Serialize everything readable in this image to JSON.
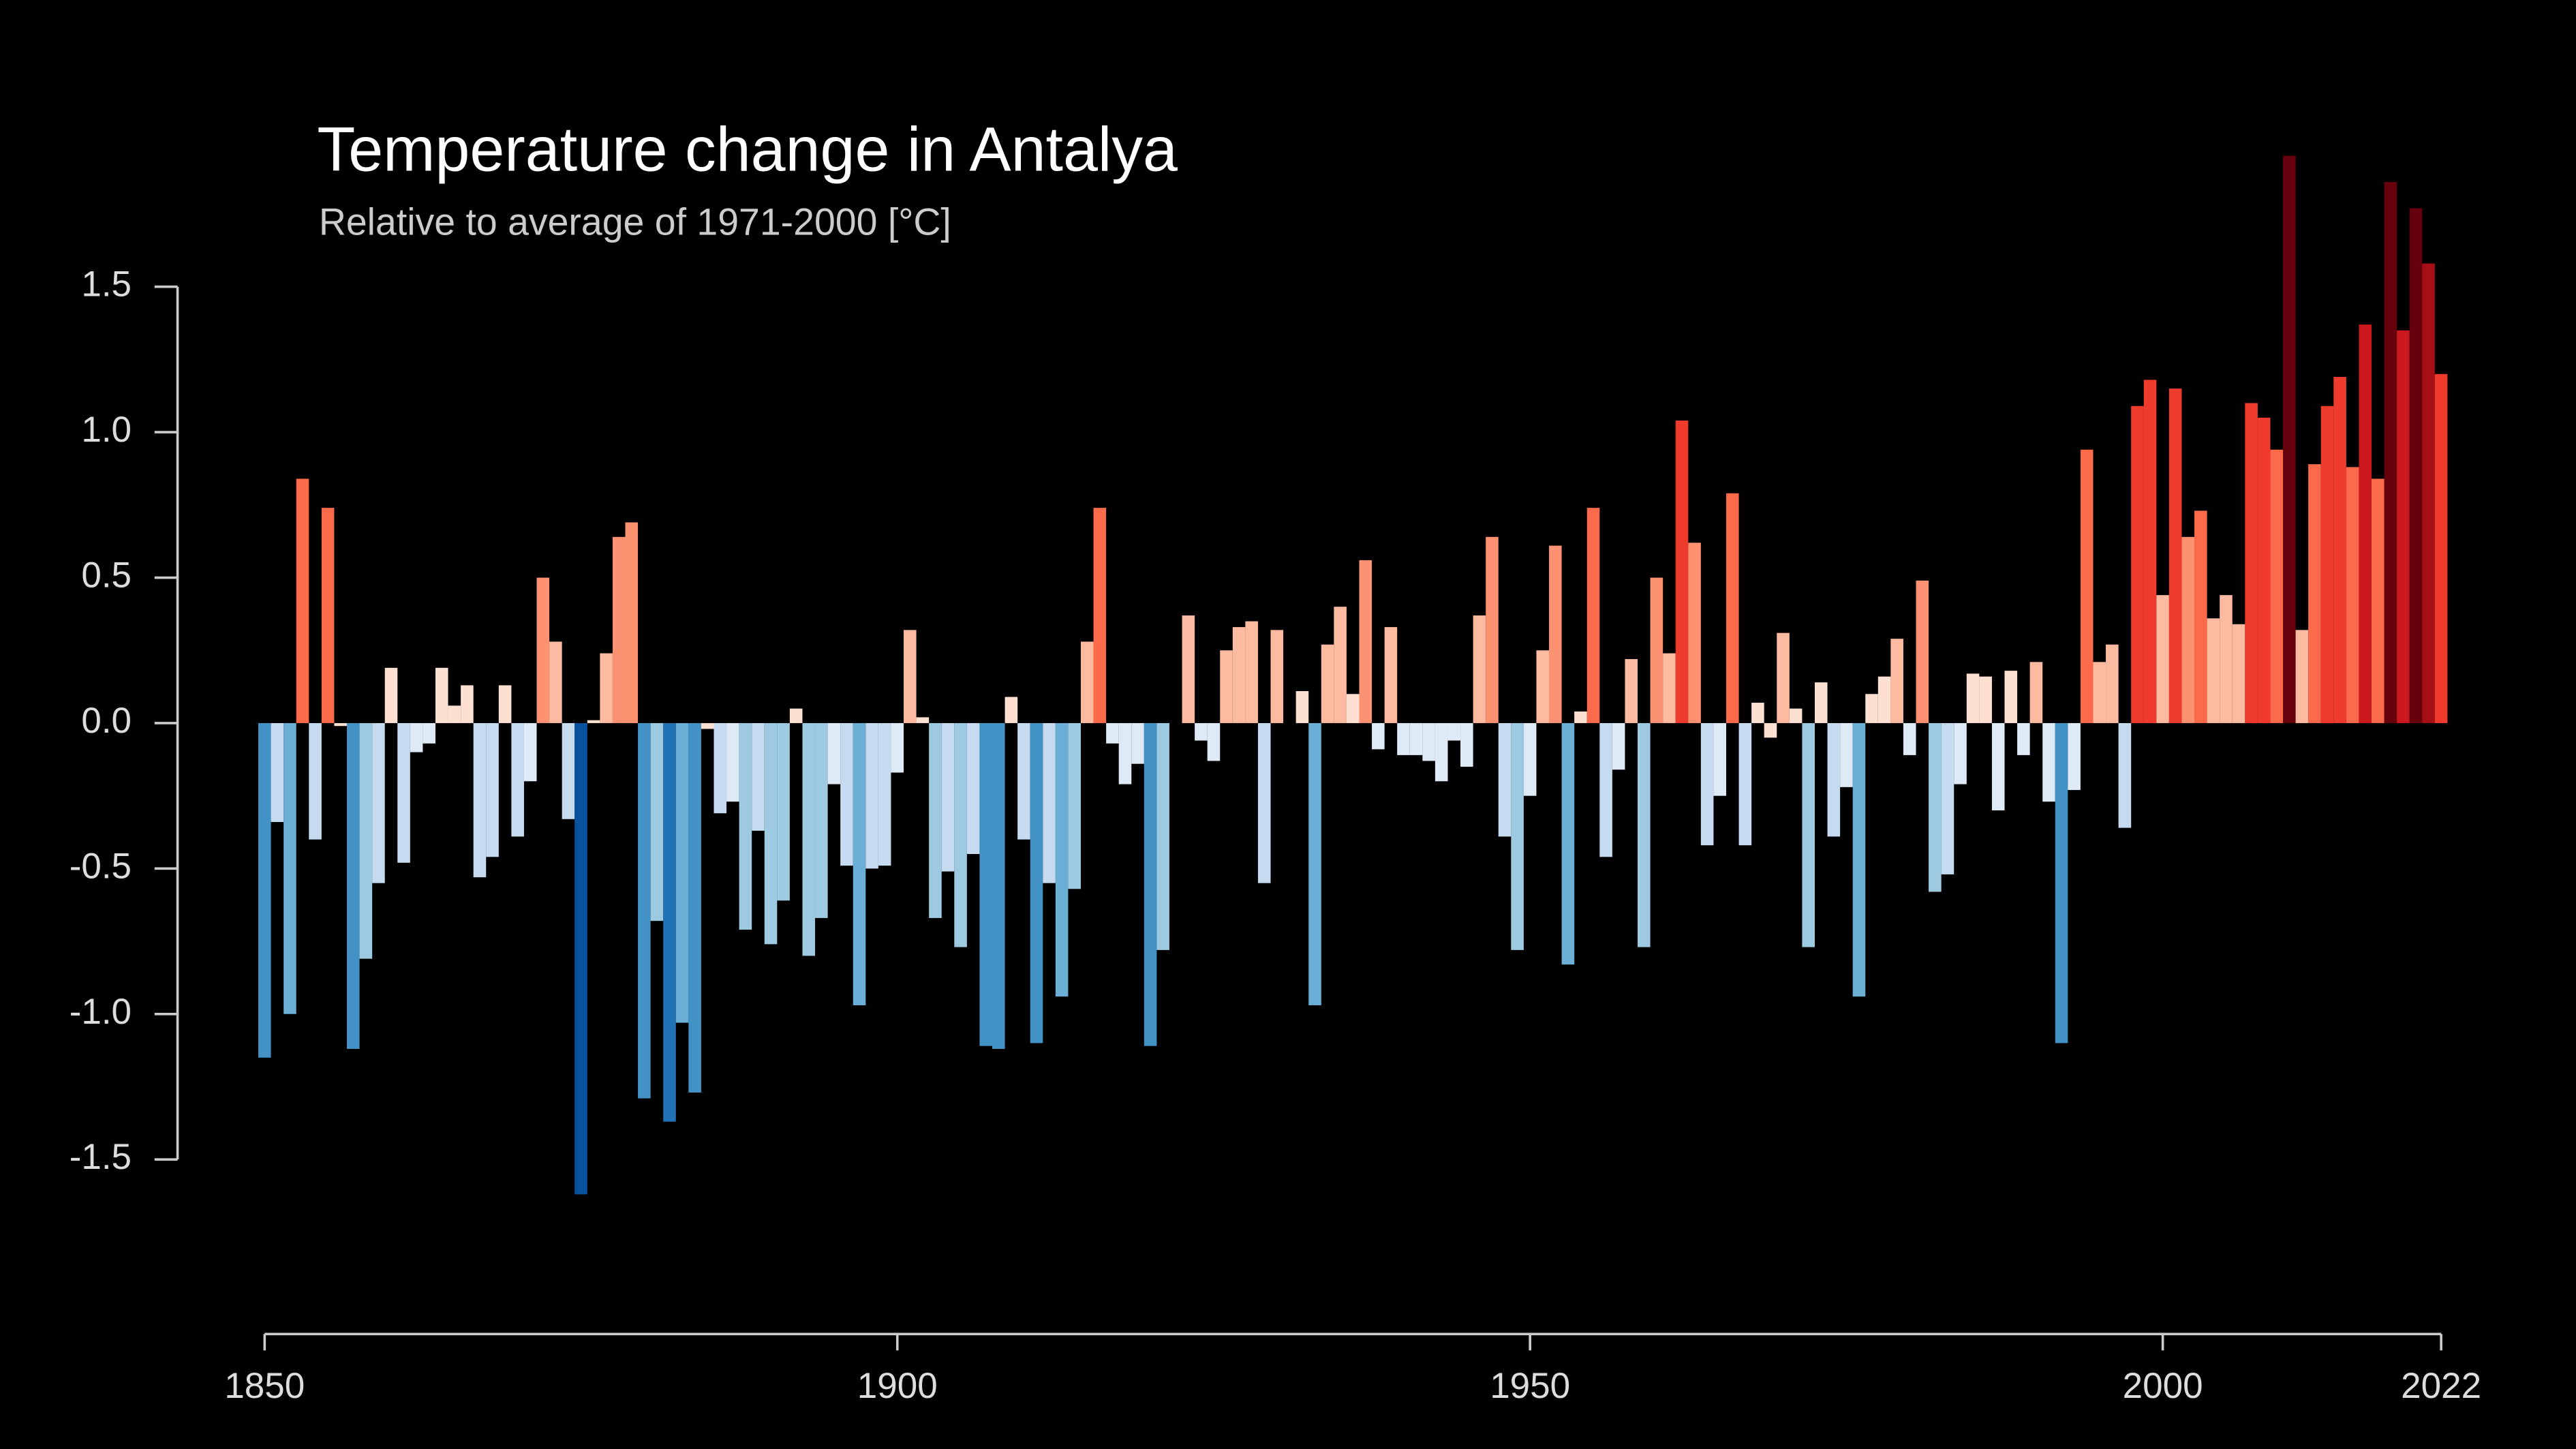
{
  "chart_data": {
    "type": "bar",
    "title": "Temperature change in Antalya",
    "subtitle": "Relative to average of 1971-2000  [°C]",
    "x": [
      1850,
      1851,
      1852,
      1853,
      1854,
      1855,
      1856,
      1857,
      1858,
      1859,
      1860,
      1861,
      1862,
      1863,
      1864,
      1865,
      1866,
      1867,
      1868,
      1869,
      1870,
      1871,
      1872,
      1873,
      1874,
      1875,
      1876,
      1877,
      1878,
      1879,
      1880,
      1881,
      1882,
      1883,
      1884,
      1885,
      1886,
      1887,
      1888,
      1889,
      1890,
      1891,
      1892,
      1893,
      1894,
      1895,
      1896,
      1897,
      1898,
      1899,
      1900,
      1901,
      1902,
      1903,
      1904,
      1905,
      1906,
      1907,
      1908,
      1909,
      1910,
      1911,
      1912,
      1913,
      1914,
      1915,
      1916,
      1917,
      1918,
      1919,
      1920,
      1921,
      1922,
      1923,
      1924,
      1925,
      1926,
      1927,
      1928,
      1929,
      1930,
      1931,
      1932,
      1933,
      1934,
      1935,
      1936,
      1937,
      1938,
      1939,
      1940,
      1941,
      1942,
      1943,
      1944,
      1945,
      1946,
      1947,
      1948,
      1949,
      1950,
      1951,
      1952,
      1953,
      1954,
      1955,
      1956,
      1957,
      1958,
      1959,
      1960,
      1961,
      1962,
      1963,
      1964,
      1965,
      1966,
      1967,
      1968,
      1969,
      1970,
      1971,
      1972,
      1973,
      1974,
      1975,
      1976,
      1977,
      1978,
      1979,
      1980,
      1981,
      1982,
      1983,
      1984,
      1985,
      1986,
      1987,
      1988,
      1989,
      1990,
      1991,
      1992,
      1993,
      1994,
      1995,
      1996,
      1997,
      1998,
      1999,
      2000,
      2001,
      2002,
      2003,
      2004,
      2005,
      2006,
      2007,
      2008,
      2009,
      2010,
      2011,
      2012,
      2013,
      2014,
      2015,
      2016,
      2017,
      2018,
      2019,
      2020,
      2021,
      2022
    ],
    "values": [
      -1.15,
      -0.34,
      -1.0,
      0.84,
      -0.4,
      0.74,
      -0.01,
      -1.12,
      -0.81,
      -0.55,
      0.19,
      -0.48,
      -0.1,
      -0.07,
      0.19,
      0.06,
      0.13,
      -0.53,
      -0.46,
      0.13,
      -0.39,
      -0.2,
      0.5,
      0.28,
      -0.33,
      -1.62,
      0.01,
      0.24,
      0.64,
      0.69,
      -1.29,
      -0.68,
      -1.37,
      -1.03,
      -1.27,
      -0.02,
      -0.31,
      -0.27,
      -0.71,
      -0.37,
      -0.76,
      -0.61,
      0.05,
      -0.8,
      -0.67,
      -0.21,
      -0.49,
      -0.97,
      -0.5,
      -0.49,
      -0.17,
      0.32,
      0.02,
      -0.67,
      -0.51,
      -0.77,
      -0.45,
      -1.11,
      -1.12,
      0.09,
      -0.4,
      -1.1,
      -0.55,
      -0.94,
      -0.57,
      0.28,
      0.74,
      -0.07,
      -0.21,
      -0.14,
      -1.11,
      -0.78,
      0.0,
      0.37,
      -0.06,
      -0.13,
      0.25,
      0.33,
      0.35,
      -0.55,
      0.32,
      0.0,
      0.11,
      -0.97,
      0.27,
      0.4,
      0.1,
      0.56,
      -0.09,
      0.33,
      -0.11,
      -0.11,
      -0.13,
      -0.2,
      -0.06,
      -0.15,
      0.37,
      0.64,
      -0.39,
      -0.78,
      -0.25,
      0.25,
      0.61,
      -0.83,
      0.04,
      0.74,
      -0.46,
      -0.16,
      0.22,
      -0.77,
      0.5,
      0.24,
      1.04,
      0.62,
      -0.42,
      -0.25,
      0.79,
      -0.42,
      0.07,
      -0.05,
      0.31,
      0.05,
      -0.77,
      0.14,
      -0.39,
      -0.22,
      -0.94,
      0.1,
      0.16,
      0.29,
      -0.11,
      0.49,
      -0.58,
      -0.52,
      -0.21,
      0.17,
      0.16,
      -0.3,
      0.18,
      -0.11,
      0.21,
      -0.27,
      -1.1,
      -0.23,
      0.94,
      0.21,
      0.27,
      -0.36,
      1.09,
      1.18,
      0.44,
      1.15,
      0.64,
      0.73,
      0.36,
      0.44,
      0.34,
      1.1,
      1.05,
      0.94,
      1.95,
      0.32,
      0.89,
      1.09,
      1.19,
      0.88,
      1.37,
      0.84,
      1.86,
      1.35,
      1.77,
      1.58,
      1.2
    ],
    "colors": [
      "#08306b",
      "#08519c",
      "#2171b5",
      "#4292c6",
      "#6baed6",
      "#9ecae1",
      "#c6dbef",
      "#deebf7",
      "#fee0d2",
      "#fcbba1",
      "#fc9272",
      "#fb6a4a",
      "#ef3b2c",
      "#cb181d",
      "#a50f15",
      "#67000d"
    ],
    "xlim": [
      1850,
      2022
    ],
    "xticks": [
      1850,
      1900,
      1950,
      2000,
      2022
    ],
    "ylim": [
      -2.1,
      2.0
    ],
    "yticks": [
      1.5,
      {
        "value": 1,
        "label": "1.0"
      },
      0.5,
      {
        "value": 0,
        "label": "0.0"
      },
      -0.5,
      {
        "value": -1,
        "label": "-1.0"
      },
      -1.5
    ],
    "grid": false
  }
}
